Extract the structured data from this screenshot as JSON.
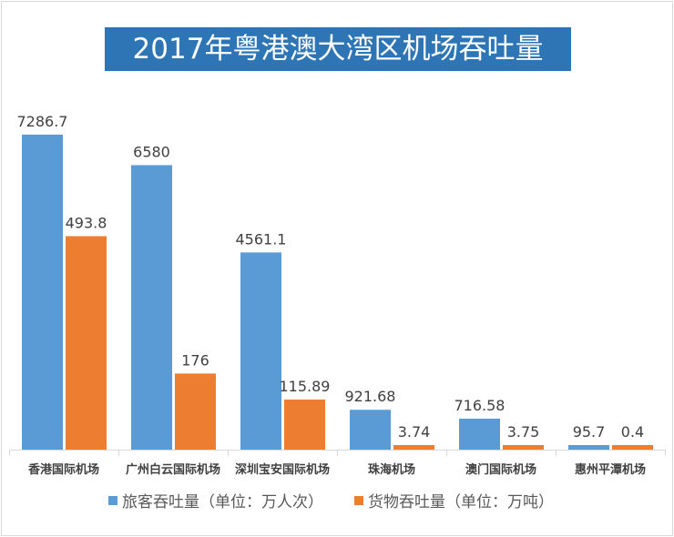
{
  "chart_data": {
    "type": "bar",
    "title": "2017年粤港澳大湾区机场吞吐量",
    "categories": [
      "香港国际机场",
      "广州白云国际机场",
      "深圳宝安国际机场",
      "珠海机场",
      "澳门国际机场",
      "惠州平潭机场"
    ],
    "series": [
      {
        "name": "旅客吞吐量（单位：万人次）",
        "values": [
          7286.7,
          6580,
          4561.1,
          921.68,
          716.58,
          95.7
        ],
        "color": "#5b9bd5",
        "axis": "primary"
      },
      {
        "name": "货物吞吐量（单位：万吨）",
        "values": [
          493.8,
          176,
          115.89,
          3.74,
          3.75,
          0.4
        ],
        "color": "#ed7d31",
        "axis": "secondary"
      }
    ],
    "data_labels": [
      [
        "7286.7",
        "6580",
        "4561.1",
        "921.68",
        "716.58",
        "95.7"
      ],
      [
        "493.8",
        "176",
        "115.89",
        "3.74",
        "3.75",
        "0.4"
      ]
    ],
    "ylim_primary": [
      0,
      8000
    ],
    "ylim_secondary": [
      0,
      800
    ],
    "axes_visible": false,
    "grid": false,
    "legend_position": "bottom"
  }
}
